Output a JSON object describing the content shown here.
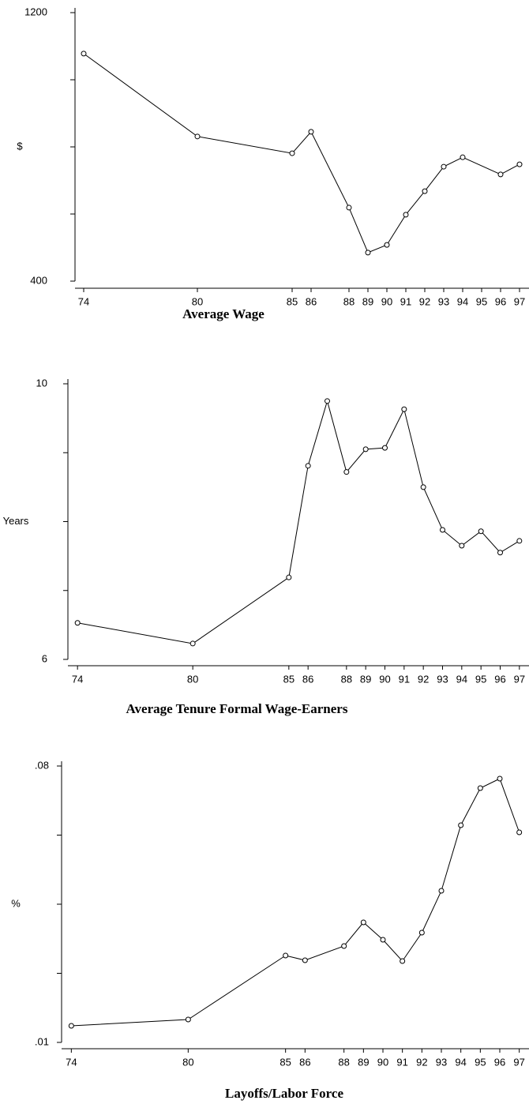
{
  "chart_data": [
    {
      "type": "line",
      "title": "Average Wage",
      "y_label": "$",
      "x": [
        74,
        80,
        85,
        86,
        88,
        89,
        90,
        91,
        92,
        93,
        94,
        96,
        97
      ],
      "values": [
        1078,
        831,
        781,
        845,
        619,
        485,
        508,
        598,
        668,
        741,
        769,
        718,
        748
      ],
      "color": "#000000",
      "xlim": [
        73.5,
        97.5
      ],
      "xticks": [
        74,
        80,
        85,
        86,
        88,
        89,
        90,
        91,
        92,
        93,
        94,
        95,
        96,
        97
      ],
      "ylim": [
        400,
        1200
      ],
      "yticks": [
        400,
        1200
      ],
      "minor_yticks": [
        600,
        800,
        1000
      ]
    },
    {
      "type": "line",
      "title": "Average Tenure Formal Wage-Earners",
      "y_label": "Years",
      "x": [
        74,
        80,
        85,
        86,
        87,
        88,
        89,
        90,
        91,
        92,
        93,
        94,
        95,
        96,
        97
      ],
      "values": [
        6.53,
        6.23,
        7.19,
        8.81,
        9.75,
        8.72,
        9.05,
        9.07,
        9.63,
        8.5,
        7.88,
        7.65,
        7.86,
        7.55,
        7.72
      ],
      "color": "#000000",
      "xlim": [
        73.5,
        97.5
      ],
      "xticks": [
        74,
        80,
        85,
        86,
        88,
        89,
        90,
        91,
        92,
        93,
        94,
        95,
        96,
        97
      ],
      "ylim": [
        6,
        10
      ],
      "yticks": [
        6,
        10
      ],
      "minor_yticks": [
        7,
        8,
        9
      ]
    },
    {
      "type": "line",
      "title": "Layoffs/Labor Force",
      "y_label": "%",
      "x": [
        74,
        80,
        85,
        86,
        88,
        89,
        90,
        91,
        92,
        93,
        94,
        95,
        96,
        97
      ],
      "values": [
        0.0142,
        0.0158,
        0.032,
        0.0308,
        0.0344,
        0.0404,
        0.036,
        0.0306,
        0.0378,
        0.0484,
        0.065,
        0.0744,
        0.0768,
        0.0632
      ],
      "color": "#000000",
      "xlim": [
        73.5,
        97.5
      ],
      "xticks": [
        74,
        80,
        85,
        86,
        88,
        89,
        90,
        91,
        92,
        93,
        94,
        95,
        96,
        97
      ],
      "ylim": [
        0.01,
        0.08
      ],
      "yticks": [
        {
          "value": 0.01,
          "label": ".01"
        },
        {
          "value": 0.08,
          "label": ".08"
        }
      ],
      "minor_yticks": [
        0.0275,
        0.045,
        0.0625
      ]
    }
  ]
}
